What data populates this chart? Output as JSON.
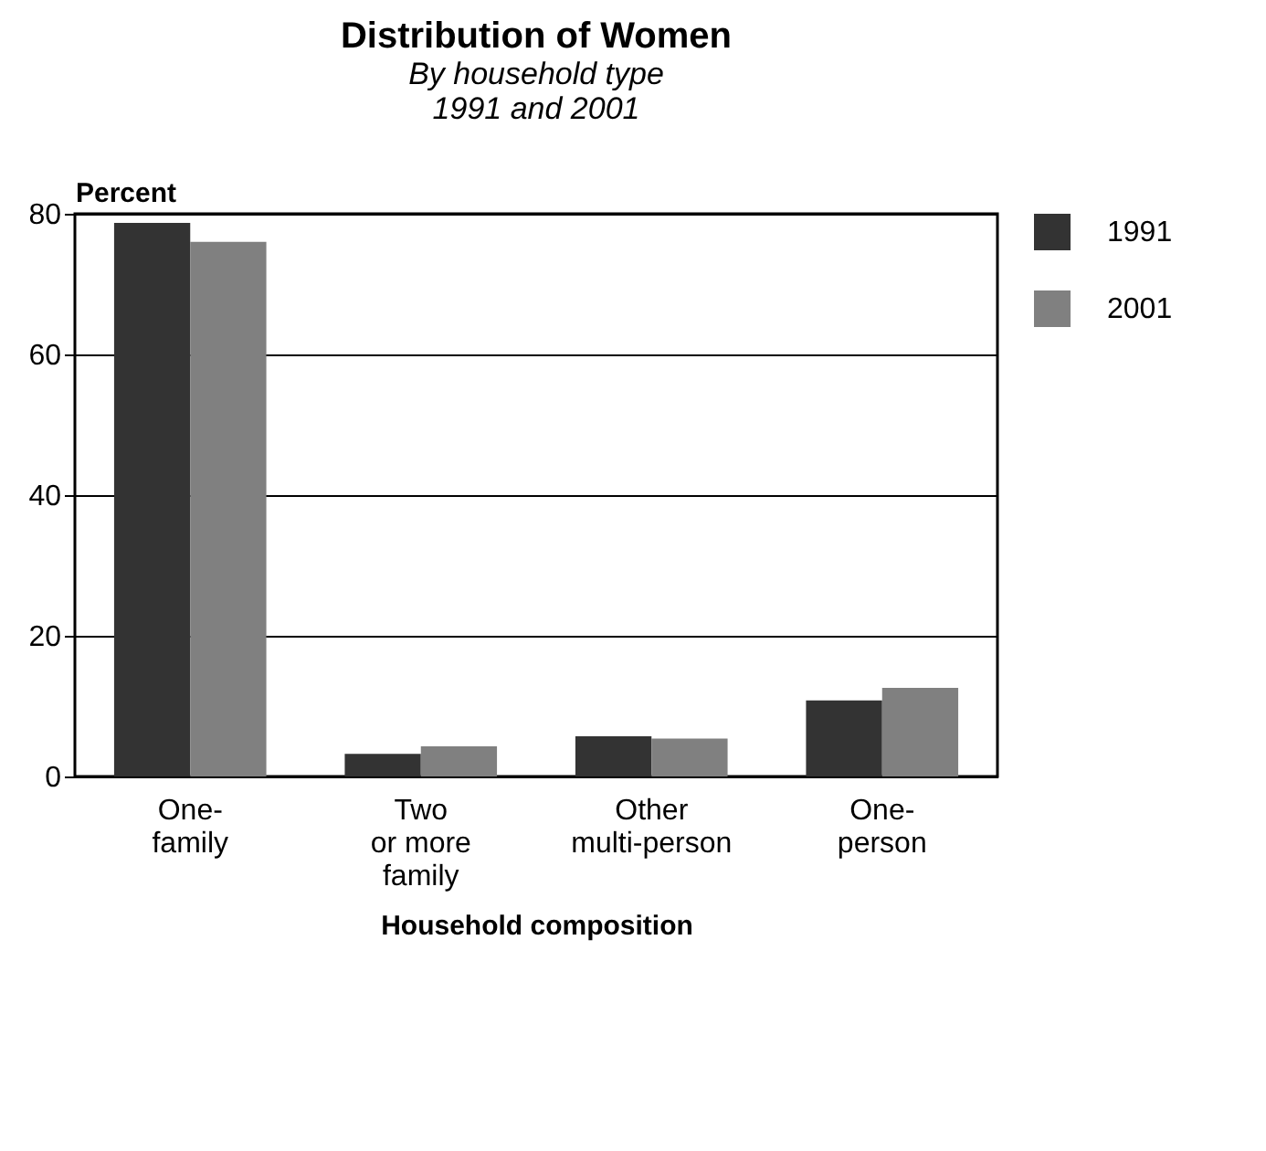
{
  "chart_data": {
    "type": "bar",
    "title": "Distribution of Women",
    "subtitle": "By household type",
    "annotations": [
      "1991 and 2001"
    ],
    "xlabel": "Household composition",
    "ylabel": "Percent",
    "categories": [
      "One-\nfamily",
      "Two\nor more\nfamily",
      "Other\nmulti-person",
      "One-\nperson"
    ],
    "series": [
      {
        "name": "1991",
        "color": "#333333",
        "values": [
          78.7,
          3.2,
          5.7,
          10.8
        ]
      },
      {
        "name": "2001",
        "color": "#808080",
        "values": [
          76.0,
          4.3,
          5.4,
          12.6
        ]
      }
    ],
    "ylim": [
      0,
      80
    ],
    "yticks": [
      0,
      20,
      40,
      60,
      80
    ],
    "grid": "y",
    "legend": "right"
  }
}
